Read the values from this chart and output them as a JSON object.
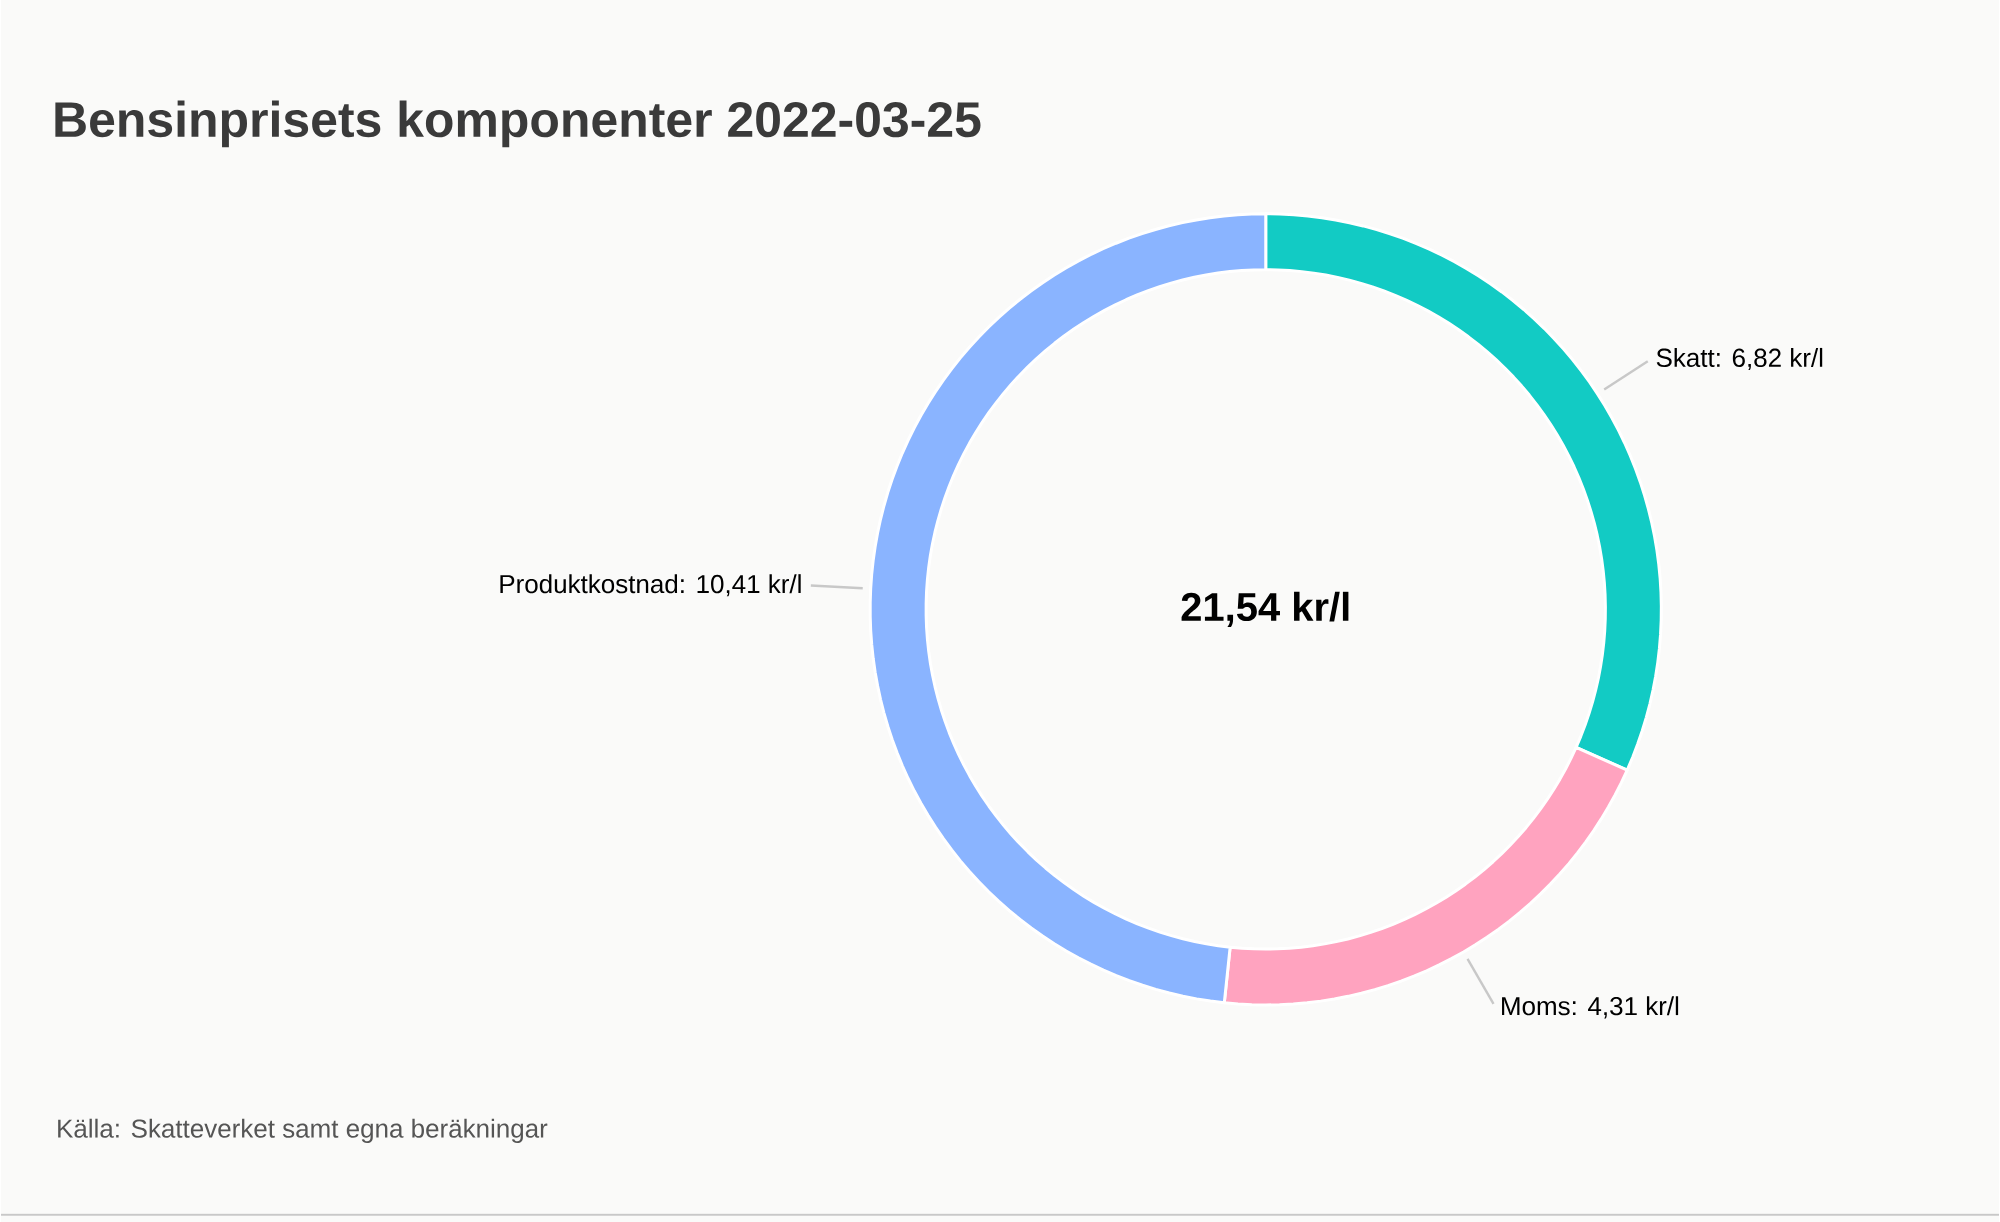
{
  "chart_data": {
    "type": "donut",
    "title": "Bensinprisets komponenter 2022-03-25",
    "categories": [
      "Skatt: 6,82 kr/l",
      "Moms: 4,31 kr/l",
      "Produktkostnad: 10,41 kr/l"
    ],
    "values": [
      6.82,
      4.31,
      10.41
    ],
    "colors": [
      "#12cbc4",
      "#ffa3bf",
      "#8ab4ff"
    ],
    "annotations": [
      "21,54 kr/l",
      "Källa: Skatteverket samt egna beräkningar"
    ]
  }
}
